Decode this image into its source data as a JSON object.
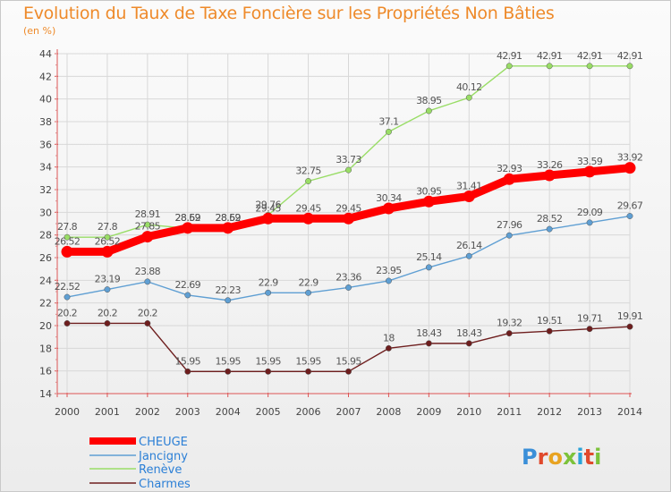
{
  "title": "Evolution du Taux de Taxe Foncière sur les Propriétés Non Bâties",
  "subtitle": "(en %)",
  "brand": "Proxiti",
  "chart_data": {
    "type": "line",
    "x": [
      "2000",
      "2001",
      "2002",
      "2003",
      "2004",
      "2005",
      "2006",
      "2007",
      "2008",
      "2009",
      "2010",
      "2011",
      "2012",
      "2013",
      "2014"
    ],
    "ylim": [
      14,
      44
    ],
    "yticks": [
      14,
      16,
      18,
      20,
      22,
      24,
      26,
      28,
      30,
      32,
      34,
      36,
      38,
      40,
      42,
      44
    ],
    "grid": true,
    "legend_position": "bottom-left",
    "series": [
      {
        "name": "CHEUGE",
        "color": "#ff0000",
        "values": [
          26.52,
          26.52,
          27.85,
          28.62,
          28.62,
          29.45,
          29.45,
          29.45,
          30.34,
          30.95,
          31.41,
          32.93,
          33.26,
          33.59,
          33.92
        ],
        "labels": [
          "26.52",
          "26.52",
          "27.85",
          "28.62",
          "28.62",
          "29.45",
          "29.45",
          "29.45",
          "30.34",
          "30.95",
          "31.41",
          "32.93",
          "33.26",
          "33.59",
          "33.92"
        ]
      },
      {
        "name": "Jancigny",
        "color": "#5f9fd3",
        "values": [
          22.52,
          23.19,
          23.88,
          22.69,
          22.23,
          22.9,
          22.9,
          23.36,
          23.95,
          25.14,
          26.14,
          27.96,
          28.52,
          29.09,
          29.67
        ],
        "labels": [
          "22.52",
          "23.19",
          "23.88",
          "22.69",
          "22.23",
          "22.9",
          "22.9",
          "23.36",
          "23.95",
          "25.14",
          "26.14",
          "27.96",
          "28.52",
          "29.09",
          "29.67"
        ]
      },
      {
        "name": "Renève",
        "color": "#99dd66",
        "values": [
          27.8,
          27.8,
          28.91,
          28.59,
          28.59,
          29.76,
          32.75,
          33.73,
          37.1,
          38.95,
          40.12,
          42.91,
          42.91,
          42.91,
          42.91
        ],
        "labels": [
          "27.8",
          "27.8",
          "28.91",
          "28.59",
          "28.59",
          "29.76",
          "32.75",
          "33.73",
          "37.1",
          "38.95",
          "40.12",
          "42.91",
          "42.91",
          "42.91",
          "42.91"
        ]
      },
      {
        "name": "Charmes",
        "color": "#6e1e1e",
        "values": [
          20.2,
          20.2,
          20.2,
          15.95,
          15.95,
          15.95,
          15.95,
          15.95,
          18,
          18.43,
          18.43,
          19.32,
          19.51,
          19.71,
          19.91
        ],
        "labels": [
          "20.2",
          "20.2",
          "20.2",
          "15.95",
          "15.95",
          "15.95",
          "15.95",
          "15.95",
          "18",
          "18.43",
          "18.43",
          "19.32",
          "19.51",
          "19.71",
          "19.91"
        ]
      }
    ]
  }
}
